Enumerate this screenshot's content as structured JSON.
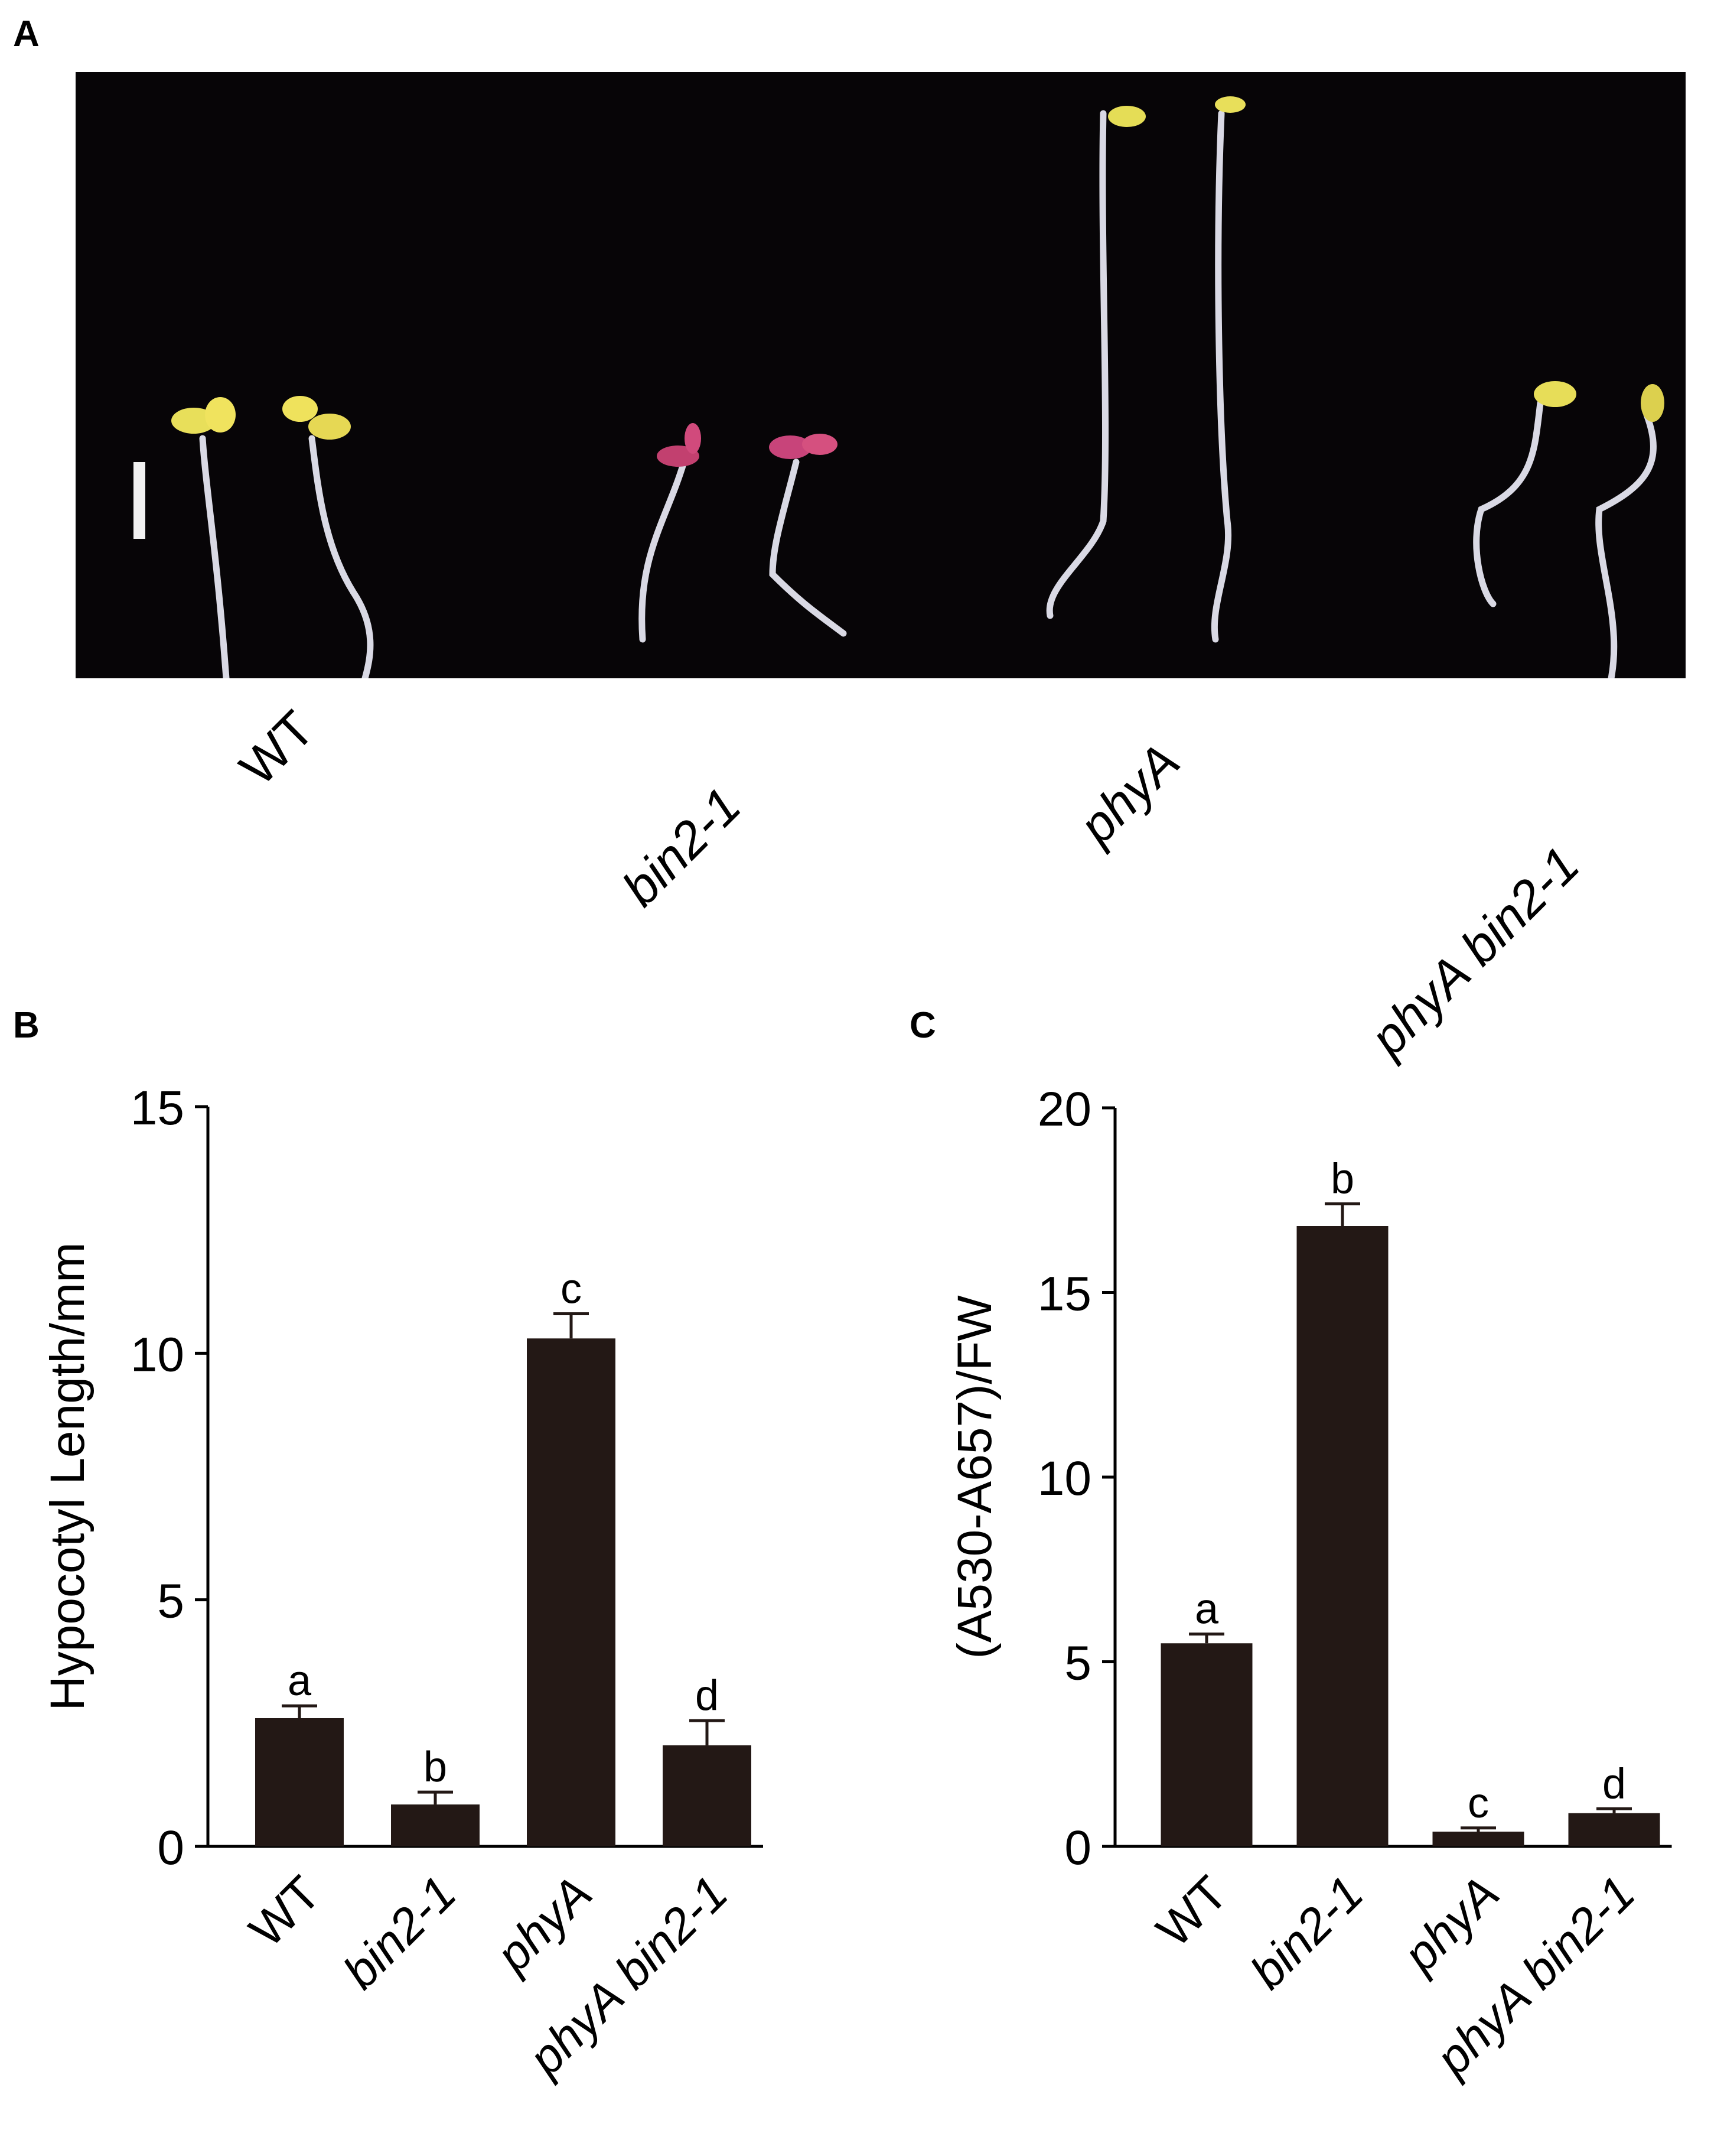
{
  "panels": {
    "a": {
      "letter": "A",
      "genotypes": [
        {
          "label": "WT",
          "italic": false
        },
        {
          "label": "bin2-1",
          "italic": true
        },
        {
          "label": "phyA",
          "italic": true
        },
        {
          "label": "phyA bin2-1",
          "italic": true
        }
      ]
    },
    "b": {
      "letter": "B"
    },
    "c": {
      "letter": "C"
    }
  },
  "chart_data": [
    {
      "type": "bar",
      "panel": "B",
      "categories": [
        "WT",
        "bin2-1",
        "phyA",
        "phyA bin2-1"
      ],
      "category_italic": [
        false,
        true,
        true,
        true
      ],
      "values": [
        2.6,
        0.85,
        10.3,
        2.05
      ],
      "errors": [
        0.25,
        0.25,
        0.5,
        0.5
      ],
      "significance": [
        "a",
        "b",
        "c",
        "d"
      ],
      "ylabel": "Hypocotyl Length/mm",
      "ylim": [
        0,
        15
      ],
      "yticks": [
        0,
        5,
        10,
        15
      ],
      "bar_color": "#231815",
      "grid": false
    },
    {
      "type": "bar",
      "panel": "C",
      "categories": [
        "WT",
        "bin2-1",
        "phyA",
        "phyA bin2-1"
      ],
      "category_italic": [
        false,
        true,
        true,
        true
      ],
      "values": [
        5.5,
        16.8,
        0.4,
        0.9
      ],
      "errors": [
        0.25,
        0.6,
        0.1,
        0.12
      ],
      "significance": [
        "a",
        "b",
        "c",
        "d"
      ],
      "ylabel": "(A530-A657)/FW",
      "ylim": [
        0,
        20
      ],
      "yticks": [
        0,
        5,
        10,
        15,
        20
      ],
      "bar_color": "#231815",
      "grid": false
    }
  ]
}
